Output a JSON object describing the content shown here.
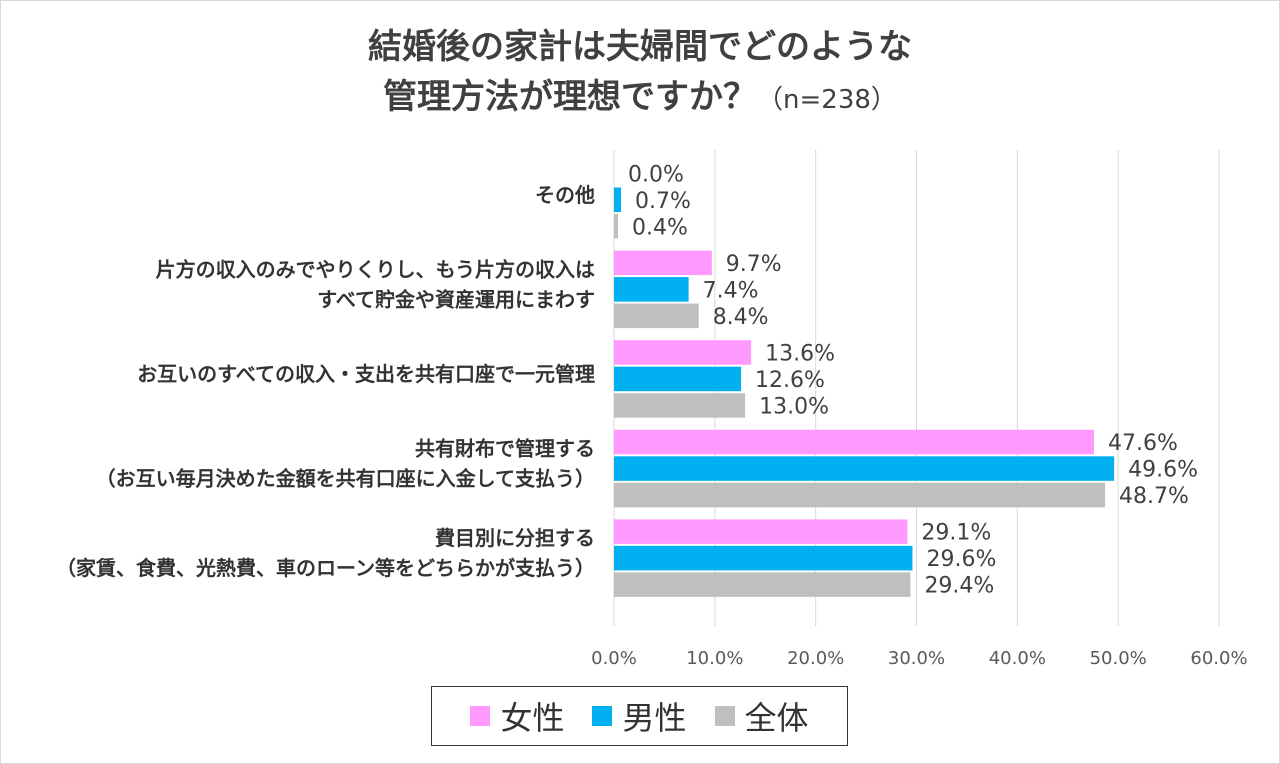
{
  "title": {
    "line1": "結婚後の家計は夫婦間でどのような",
    "line2": "管理方法が理想ですか？",
    "sample": "（n=238）"
  },
  "chart_data": {
    "type": "bar",
    "orientation": "horizontal",
    "categories": [
      [
        "その他"
      ],
      [
        "片方の収入のみでやりくりし、もう片方の収入は",
        "すべて貯金や資産運用にまわす"
      ],
      [
        "お互いのすべての収入・支出を共有口座で一元管理"
      ],
      [
        "共有財布で管理する",
        "（お互い毎月決めた金額を共有口座に入金して支払う）"
      ],
      [
        "費目別に分担する",
        "（家賃、食費、光熱費、車のローン等をどちらかが支払う）"
      ]
    ],
    "series": [
      {
        "name": "女性",
        "color": "#ff99ff",
        "values": [
          0.0,
          9.7,
          13.6,
          47.6,
          29.1
        ],
        "labels": [
          "0.0%",
          "9.7%",
          "13.6%",
          "47.6%",
          "29.1%"
        ]
      },
      {
        "name": "男性",
        "color": "#00b0f0",
        "values": [
          0.7,
          7.4,
          12.6,
          49.6,
          29.6
        ],
        "labels": [
          "0.7%",
          "7.4%",
          "12.6%",
          "49.6%",
          "29.6%"
        ]
      },
      {
        "name": "全体",
        "color": "#bfbfbf",
        "values": [
          0.4,
          8.4,
          13.0,
          48.7,
          29.4
        ],
        "labels": [
          "0.4%",
          "8.4%",
          "13.0%",
          "48.7%",
          "29.4%"
        ]
      }
    ],
    "xlim": [
      0,
      60
    ],
    "ticks": [
      0,
      10,
      20,
      30,
      40,
      50,
      60
    ],
    "tick_labels": [
      "0.0%",
      "10.0%",
      "20.0%",
      "30.0%",
      "40.0%",
      "50.0%",
      "60.0%"
    ],
    "grid": true,
    "legend_position": "bottom"
  }
}
